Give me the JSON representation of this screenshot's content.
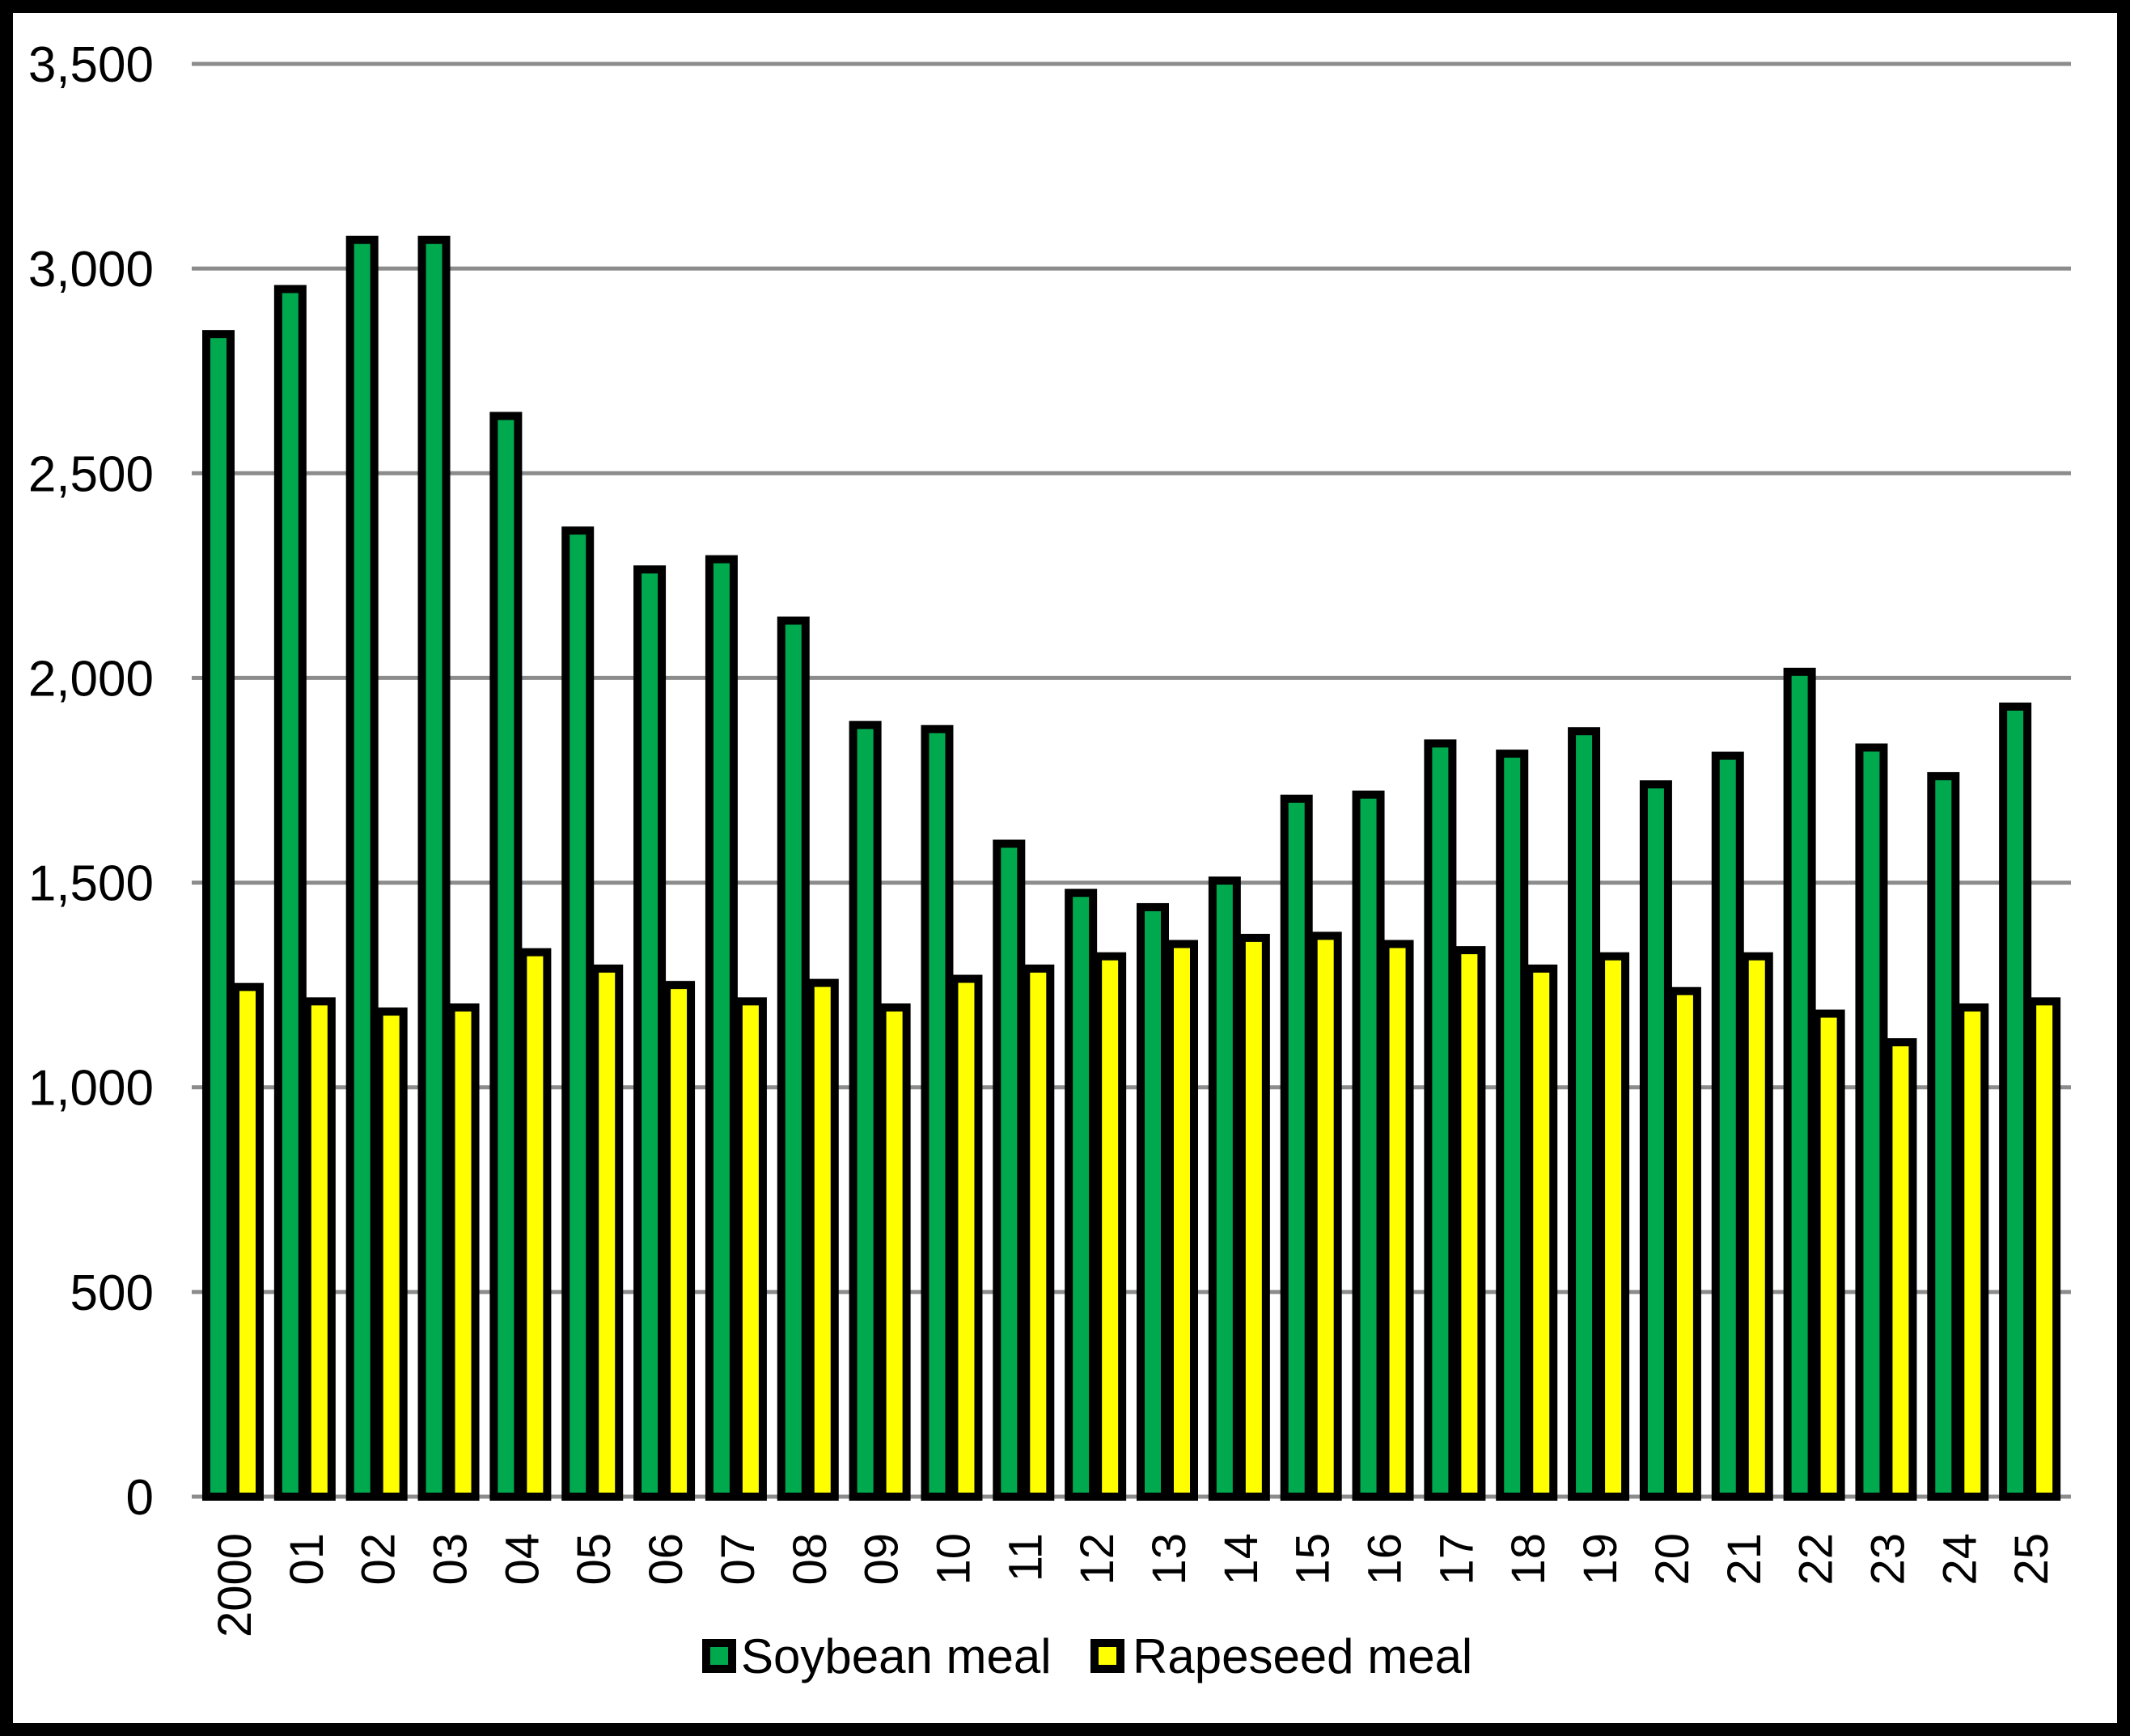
{
  "chart_data": {
    "type": "bar",
    "title": "",
    "xlabel": "",
    "ylabel": "",
    "categories": [
      "2000",
      "01",
      "02",
      "03",
      "04",
      "05",
      "06",
      "07",
      "08",
      "09",
      "10",
      "11",
      "12",
      "13",
      "14",
      "15",
      "16",
      "17",
      "18",
      "19",
      "20",
      "21",
      "22",
      "23",
      "24",
      "25"
    ],
    "series": [
      {
        "name": "Soybean meal",
        "color": "#00A94E",
        "values": [
          2840,
          2950,
          3070,
          3070,
          2640,
          2360,
          2265,
          2290,
          2140,
          1885,
          1875,
          1595,
          1475,
          1440,
          1505,
          1705,
          1715,
          1840,
          1815,
          1870,
          1740,
          1810,
          2015,
          1830,
          1760,
          1930
        ]
      },
      {
        "name": "Rapeseed meal",
        "color": "#FFFF00",
        "values": [
          1245,
          1210,
          1185,
          1195,
          1330,
          1290,
          1250,
          1210,
          1255,
          1195,
          1265,
          1290,
          1320,
          1350,
          1365,
          1370,
          1350,
          1335,
          1290,
          1320,
          1235,
          1320,
          1180,
          1110,
          1195,
          1210
        ]
      }
    ],
    "ylim": [
      0,
      3500
    ],
    "ytick_step": 500,
    "ytick_labels": [
      "0",
      "500",
      "1,000",
      "1,500",
      "2,000",
      "2,500",
      "3,000",
      "3,500"
    ],
    "grid": true,
    "legend_position": "bottom",
    "bar_border_color": "#000000",
    "gridline_color": "#8C8C8C",
    "background_color": "#FFFFFF",
    "frame_color": "#000000"
  }
}
